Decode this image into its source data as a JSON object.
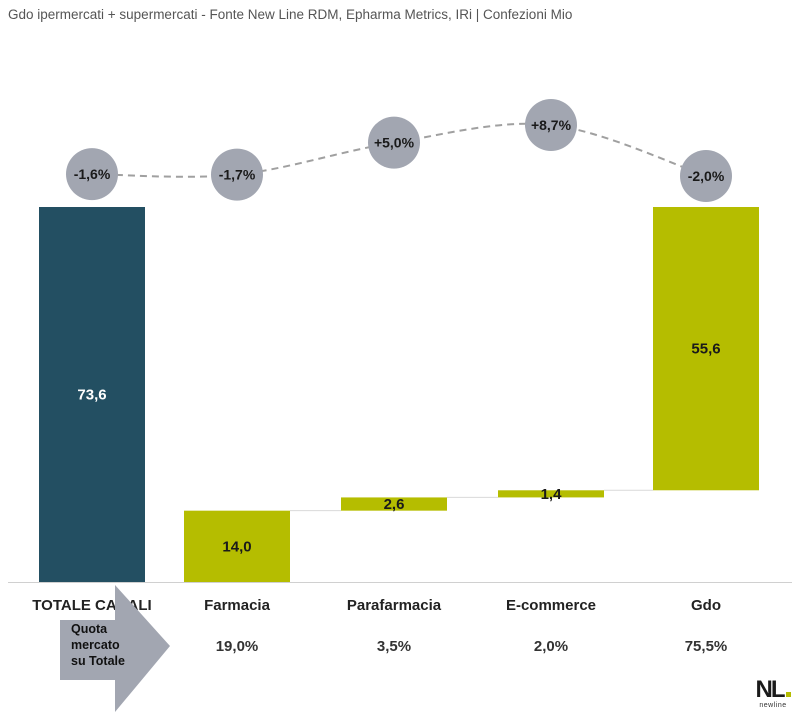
{
  "subtitle": "Gdo ipermercati + supermercati - Fonte New Line RDM, Epharma Metrics, IRi | Confezioni Mio",
  "chart_data": {
    "type": "bar",
    "subtype": "waterfall",
    "categories": [
      "TOTALE CANALI",
      "Farmacia",
      "Parafarmacia",
      "E-commerce",
      "Gdo"
    ],
    "values": [
      73.6,
      14.0,
      2.6,
      1.4,
      55.6
    ],
    "value_labels": [
      "73,6",
      "14,0",
      "2,6",
      "1,4",
      "55,6"
    ],
    "growth_labels": [
      "-1,6%",
      "-1,7%",
      "+5,0%",
      "+8,7%",
      "-2,0%"
    ],
    "growth_values": [
      -1.6,
      -1.7,
      5.0,
      8.7,
      -2.0
    ],
    "share_caption": "Quota mercato su Totale",
    "share_caption_lines": [
      "Quota",
      "mercato",
      "su Totale"
    ],
    "share_labels": [
      "19,0%",
      "3,5%",
      "2,0%",
      "75,5%"
    ],
    "share_values": [
      19.0,
      3.5,
      2.0,
      75.5
    ],
    "ylim": [
      0,
      73.6
    ],
    "grid": false,
    "colors": {
      "total": "#234f62",
      "channel": "#b5bd00",
      "bubble": "#a2a6b1",
      "trend_line": "#a0a0a0",
      "connector": "#d9d9d9",
      "arrow": "#a2a6b1"
    }
  },
  "logo": {
    "mark": "NL",
    "word": "newline"
  }
}
